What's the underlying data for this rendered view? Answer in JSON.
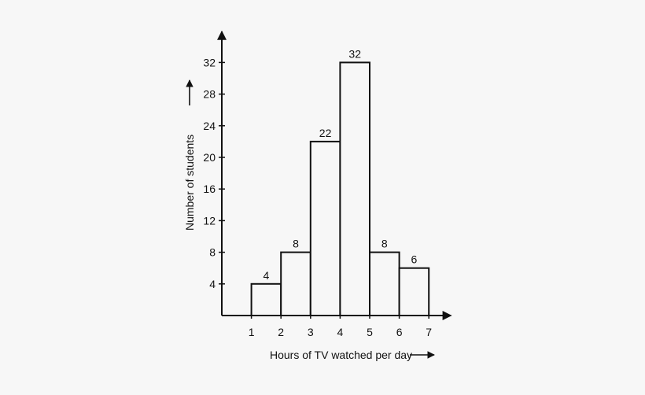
{
  "chart_data": {
    "type": "bar",
    "subtype": "histogram",
    "bins": [
      {
        "from": 1,
        "to": 2,
        "value": 4
      },
      {
        "from": 2,
        "to": 3,
        "value": 8
      },
      {
        "from": 3,
        "to": 4,
        "value": 22
      },
      {
        "from": 4,
        "to": 5,
        "value": 32
      },
      {
        "from": 5,
        "to": 6,
        "value": 8
      },
      {
        "from": 6,
        "to": 7,
        "value": 6
      }
    ],
    "x_ticks": [
      "1",
      "2",
      "3",
      "4",
      "5",
      "6",
      "7"
    ],
    "y_ticks": [
      "4",
      "8",
      "12",
      "16",
      "20",
      "24",
      "28",
      "32"
    ],
    "xlabel": "Hours of TV watched per day",
    "ylabel": "Number of students",
    "xlim": [
      0,
      7.75
    ],
    "ylim": [
      0,
      36
    ],
    "grid": false,
    "data_labels": true,
    "colors": {
      "bar_fill": "#f7f7f7",
      "stroke": "#111111",
      "background": "#f7f7f7"
    }
  }
}
